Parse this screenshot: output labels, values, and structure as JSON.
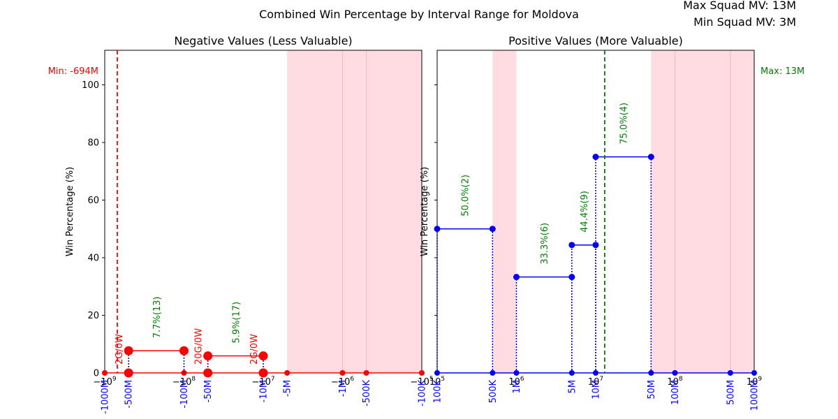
{
  "figure": {
    "title": "Combined Win Percentage by Interval Range for Moldova",
    "max_squad_mv": "Max Squad MV: 13M",
    "min_squad_mv": "Min Squad MV: 3M"
  },
  "colors": {
    "neg_line": "#ff0000",
    "pos_line": "#0000ff",
    "marker_line": "#0000cc",
    "label_green": "#008000",
    "label_red": "#ff0000",
    "shade": "#ffc0cb",
    "tick_blue": "#0000ff"
  },
  "chart_data": [
    {
      "type": "line",
      "title": "Negative Values (Less Valuable)",
      "ylabel": "Win Percentage (%)",
      "xscale": "symlog-negative",
      "xlim": [
        -1000000000,
        -100000
      ],
      "ylim": [
        0,
        112
      ],
      "yticks": [
        0,
        20,
        40,
        60,
        80,
        100
      ],
      "major_ticks": [
        {
          "value": -1000000000,
          "label": "−10^9"
        },
        {
          "value": -100000000,
          "label": "−10^8"
        },
        {
          "value": -10000000,
          "label": "−10^7"
        },
        {
          "value": -1000000,
          "label": "−10^6"
        },
        {
          "value": -100000,
          "label": "−10^5"
        }
      ],
      "interval_ticks": [
        {
          "value": -1000000000,
          "label": "-1000M"
        },
        {
          "value": -500000000,
          "label": "-500M"
        },
        {
          "value": -100000000,
          "label": "-100M"
        },
        {
          "value": -50000000,
          "label": "-50M"
        },
        {
          "value": -10000000,
          "label": "-10M"
        },
        {
          "value": -5000000,
          "label": "-5M"
        },
        {
          "value": -1000000,
          "label": "-1M"
        },
        {
          "value": -500000,
          "label": "-500K"
        },
        {
          "value": -100000,
          "label": "-100K"
        }
      ],
      "shaded_ranges": [
        [
          -5000000,
          -100000
        ]
      ],
      "vline": {
        "value": -694000000,
        "label": "Min: -694M"
      },
      "segments": [
        {
          "x1": -500000000,
          "x2": -100000000,
          "y": 7.7,
          "annotation": "7.7%(13)"
        },
        {
          "x1": -50000000,
          "x2": -10000000,
          "y": 5.9,
          "annotation": "5.9%(17)"
        }
      ],
      "zero_labels": [
        {
          "x": -500000000,
          "label": "2G/0W"
        },
        {
          "x": -50000000,
          "label": "20G/0W"
        },
        {
          "x": -10000000,
          "label": "2G/0W"
        }
      ]
    },
    {
      "type": "line",
      "title": "Positive Values (More Valuable)",
      "ylabel": "Win Percentage (%)",
      "xscale": "log",
      "xlim": [
        100000,
        1000000000
      ],
      "ylim": [
        0,
        112
      ],
      "yticks": [
        0,
        20,
        40,
        60,
        80,
        100
      ],
      "major_ticks": [
        {
          "value": 100000,
          "label": "10^5"
        },
        {
          "value": 1000000,
          "label": "10^6"
        },
        {
          "value": 10000000,
          "label": "10^7"
        },
        {
          "value": 100000000,
          "label": "10^8"
        },
        {
          "value": 1000000000,
          "label": "10^9"
        }
      ],
      "interval_ticks": [
        {
          "value": 100000,
          "label": "100K"
        },
        {
          "value": 500000,
          "label": "500K"
        },
        {
          "value": 1000000,
          "label": "1M"
        },
        {
          "value": 5000000,
          "label": "5M"
        },
        {
          "value": 10000000,
          "label": "10M"
        },
        {
          "value": 50000000,
          "label": "50M"
        },
        {
          "value": 100000000,
          "label": "100M"
        },
        {
          "value": 500000000,
          "label": "500M"
        },
        {
          "value": 1000000000,
          "label": "1000M"
        }
      ],
      "shaded_ranges": [
        [
          500000,
          1000000
        ],
        [
          50000000,
          1000000000
        ]
      ],
      "vline": {
        "value": 13000000,
        "label": "Max: 13M"
      },
      "segments": [
        {
          "x1": 100000,
          "x2": 500000,
          "y": 50.0,
          "annotation": "50.0%(2)"
        },
        {
          "x1": 1000000,
          "x2": 5000000,
          "y": 33.3,
          "annotation": "33.3%(6)"
        },
        {
          "x1": 5000000,
          "x2": 10000000,
          "y": 44.4,
          "annotation": "44.4%(9)"
        },
        {
          "x1": 10000000,
          "x2": 50000000,
          "y": 75.0,
          "annotation": "75.0%(4)"
        }
      ],
      "zero_labels": []
    }
  ]
}
